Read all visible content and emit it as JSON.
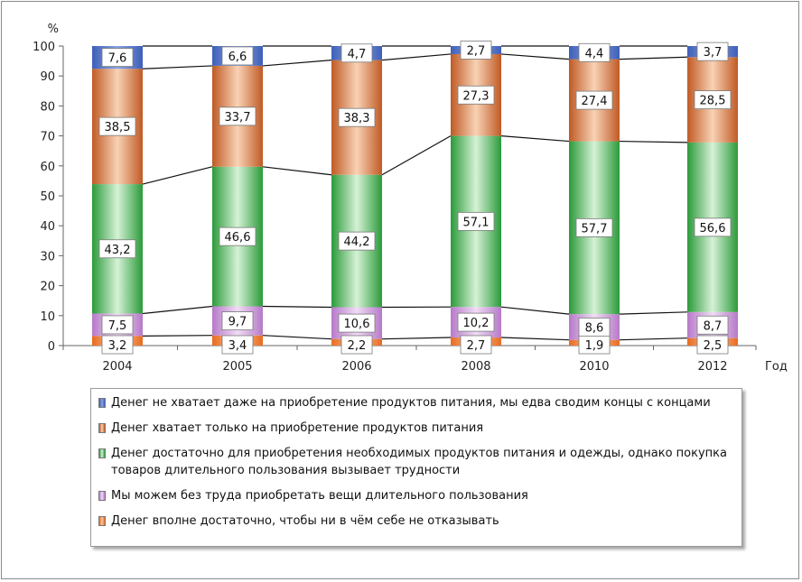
{
  "chart_data": {
    "type": "bar",
    "stacked": true,
    "title": "",
    "ylabel": "%",
    "xlabel": "Год",
    "ylim": [
      0,
      100
    ],
    "yticks": [
      0,
      10,
      20,
      30,
      40,
      50,
      60,
      70,
      80,
      90,
      100
    ],
    "categories": [
      "2004",
      "2005",
      "2006",
      "2008",
      "2010",
      "2012"
    ],
    "series": [
      {
        "name": "Денег вполне достаточно, чтобы ни в чём себе не отказывать",
        "color": "#e86b1f",
        "light": "#fbc9a5",
        "values": [
          3.2,
          3.4,
          2.2,
          2.7,
          1.9,
          2.5
        ],
        "labels": [
          "3,2",
          "3,4",
          "2,2",
          "2,7",
          "1,9",
          "2,5"
        ]
      },
      {
        "name": "Мы можем без труда приобретать вещи длительного пользования",
        "color": "#b679c8",
        "light": "#f0dcf5",
        "values": [
          7.5,
          9.7,
          10.6,
          10.2,
          8.6,
          8.7
        ],
        "labels": [
          "7,5",
          "9,7",
          "10,6",
          "10,2",
          "8,6",
          "8,7"
        ]
      },
      {
        "name": "Денег достаточно для приобретения необходимых продуктов питания и одежды, однако покупка товаров длительного пользования вызывает трудности",
        "color": "#2b9a3a",
        "light": "#d6f2d6",
        "values": [
          43.2,
          46.6,
          44.2,
          57.1,
          57.7,
          56.6
        ],
        "labels": [
          "43,2",
          "46,6",
          "44,2",
          "57,1",
          "57,7",
          "56,6"
        ]
      },
      {
        "name": "Денег хватает только на приобретение продуктов питания",
        "color": "#c05a24",
        "light": "#f8d2b5",
        "values": [
          38.5,
          33.7,
          38.3,
          27.3,
          27.4,
          28.5
        ],
        "labels": [
          "38,5",
          "33,7",
          "38,3",
          "27,3",
          "27,4",
          "28,5"
        ]
      },
      {
        "name": "Денег не хватает даже на приобретение продуктов питания, мы едва сводим концы с концами",
        "color": "#3e5fb8",
        "light": "#8aa4e0",
        "values": [
          7.6,
          6.6,
          4.7,
          2.7,
          4.4,
          3.7
        ],
        "labels": [
          "7,6",
          "6,6",
          "4,7",
          "2,7",
          "4,4",
          "3,7"
        ]
      }
    ],
    "legend": {
      "placement": "bottom",
      "order": [
        4,
        3,
        2,
        1,
        0
      ]
    }
  }
}
